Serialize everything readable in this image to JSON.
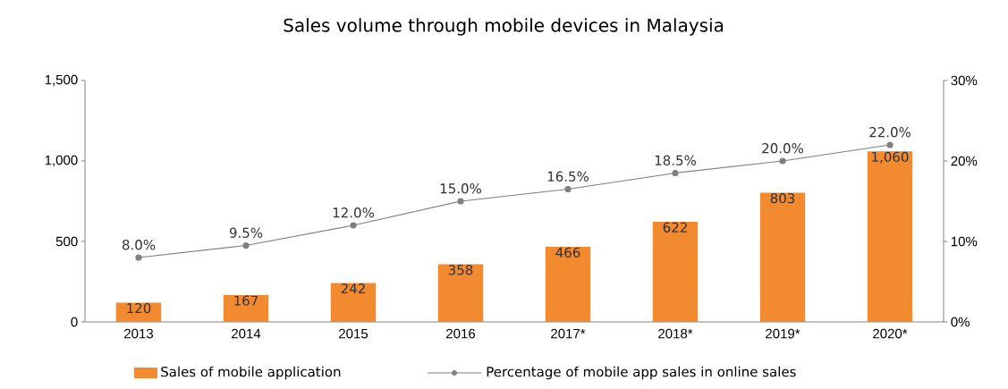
{
  "chart_data": {
    "type": "bar",
    "title": "Sales volume through mobile devices in Malaysia",
    "categories": [
      "2013",
      "2014",
      "2015",
      "2016",
      "2017*",
      "2018*",
      "2019*",
      "2020*"
    ],
    "series": [
      {
        "name": "Sales of mobile application",
        "color": "#f28a30",
        "values": [
          120,
          167,
          242,
          358,
          466,
          622,
          803,
          1060
        ],
        "value_labels": [
          "120",
          "167",
          "242",
          "358",
          "466",
          "622",
          "803",
          "1,060"
        ]
      },
      {
        "name": "Percentage of mobile app sales in online sales",
        "type": "line",
        "axis": "y2",
        "color": "#7f7f7f",
        "marker": "circle",
        "values": [
          8.0,
          9.5,
          12.0,
          15.0,
          16.5,
          18.5,
          20.0,
          22.0
        ],
        "value_labels": [
          "8.0%",
          "9.5%",
          "12.0%",
          "15.0%",
          "16.5%",
          "18.5%",
          "20.0%",
          "22.0%"
        ]
      }
    ],
    "ylim": [
      0,
      1500
    ],
    "yticks": [
      0,
      {
        "value": 500,
        "label": "500"
      },
      {
        "value": 1000,
        "label": "1,000"
      },
      {
        "value": 1500,
        "label": "1,500"
      }
    ],
    "y2lim": [
      0,
      30
    ],
    "y2ticks": [
      {
        "value": 0,
        "label": "0%"
      },
      {
        "value": 10,
        "label": "10%"
      },
      {
        "value": 20,
        "label": "20%"
      },
      {
        "value": 30,
        "label": "30%"
      }
    ],
    "legend": "bottom"
  }
}
